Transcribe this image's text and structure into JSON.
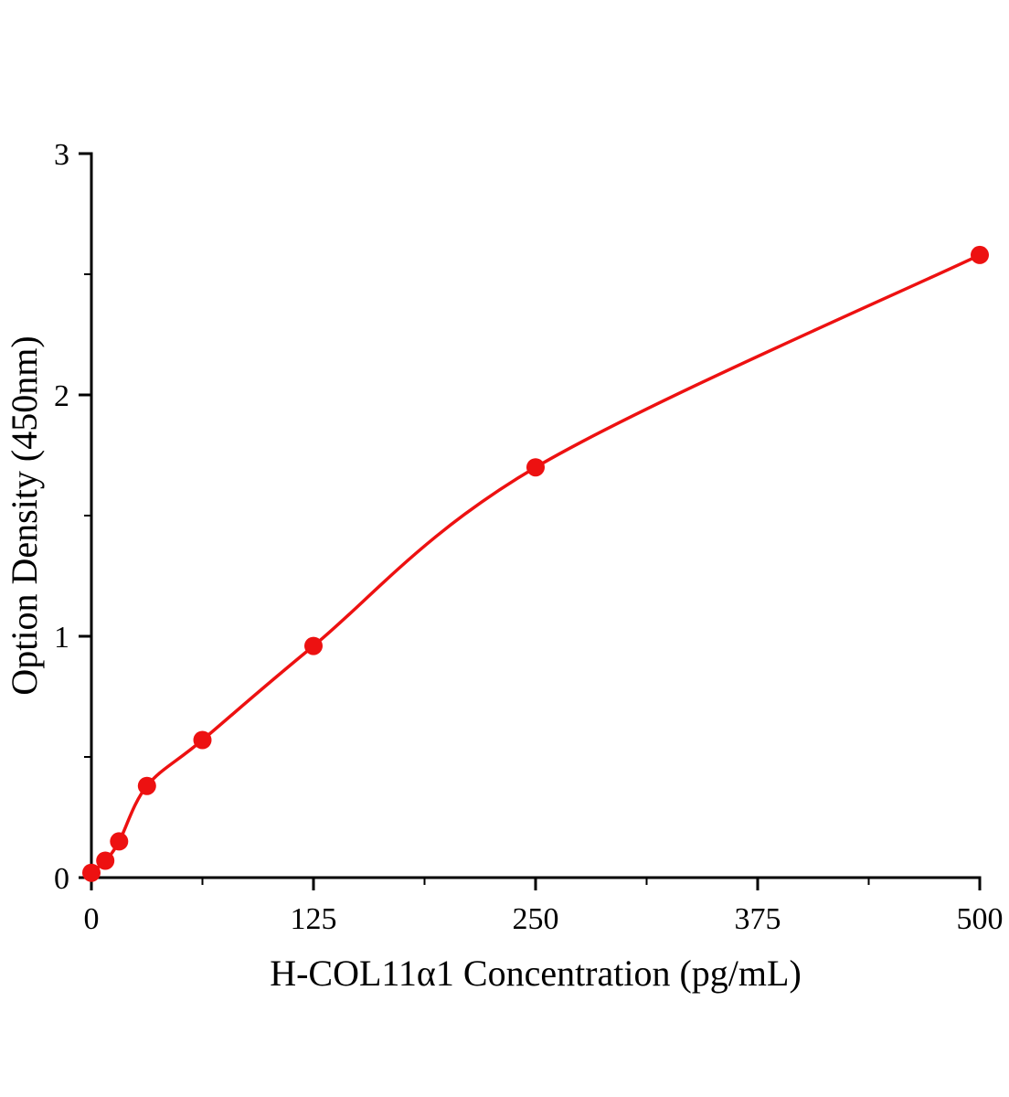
{
  "chart_data": {
    "type": "scatter",
    "title": "",
    "xlabel": "H-COL11α1 Concentration (pg/mL)",
    "ylabel": "Option Density (450nm)",
    "x": [
      0,
      7.8,
      15.6,
      31.25,
      62.5,
      125,
      250,
      500
    ],
    "y": [
      0.02,
      0.07,
      0.15,
      0.38,
      0.57,
      0.96,
      1.7,
      2.58
    ],
    "xlim": [
      0,
      500
    ],
    "ylim": [
      0,
      3
    ],
    "xticks": [
      0,
      125,
      250,
      375,
      500
    ],
    "yticks": [
      0,
      1,
      2,
      3
    ],
    "grid": false,
    "legend_position": "none",
    "curve_style": "smooth fit through points",
    "accent_color": "#ed1111",
    "axis_color": "#000000",
    "background_color": "#ffffff"
  }
}
